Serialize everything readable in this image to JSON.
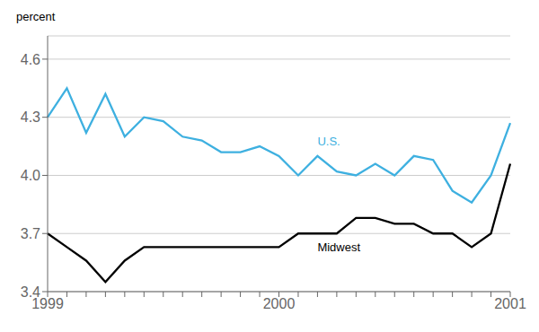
{
  "chart_data": {
    "type": "line",
    "y_label": "percent",
    "categories": [
      "1999",
      null,
      null,
      null,
      null,
      null,
      null,
      null,
      null,
      null,
      null,
      null,
      "2000",
      null,
      null,
      null,
      null,
      null,
      null,
      null,
      null,
      null,
      null,
      null,
      "2001"
    ],
    "series": [
      {
        "name": "U.S.",
        "color": "#3eb0e0",
        "values": [
          4.3,
          4.45,
          4.22,
          4.42,
          4.2,
          4.3,
          4.28,
          4.2,
          4.18,
          4.12,
          4.12,
          4.15,
          4.1,
          4.0,
          4.1,
          4.02,
          4.0,
          4.06,
          4.0,
          4.1,
          4.08,
          3.92,
          3.86,
          4.0,
          4.27
        ]
      },
      {
        "name": "Midwest",
        "color": "#000000",
        "values": [
          3.7,
          3.63,
          3.56,
          3.45,
          3.56,
          3.63,
          3.63,
          3.63,
          3.63,
          3.63,
          3.63,
          3.63,
          3.63,
          3.7,
          3.7,
          3.7,
          3.78,
          3.78,
          3.75,
          3.75,
          3.7,
          3.7,
          3.63,
          3.7,
          4.06
        ]
      }
    ],
    "ylim": [
      3.4,
      4.72
    ],
    "yticks": [
      3.4,
      3.7,
      {
        "value": 4.0,
        "label": "4.0"
      },
      4.3,
      4.6
    ],
    "grid": true
  }
}
